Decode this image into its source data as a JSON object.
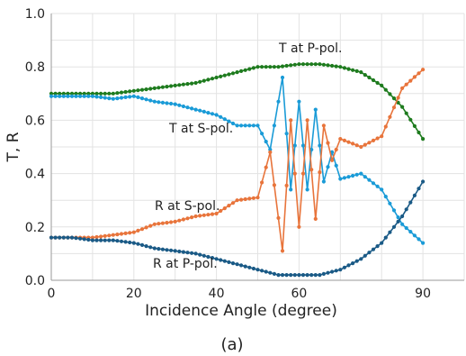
{
  "chart_data": {
    "type": "line",
    "xlabel": "Incidence Angle (degree)",
    "ylabel": "T, R",
    "caption": "(a)",
    "xlim": [
      0,
      100
    ],
    "ylim": [
      0,
      1.0
    ],
    "xticks": [
      "0",
      "20",
      "40",
      "60",
      "90"
    ],
    "yticks": [
      "0.0",
      "0.2",
      "0.4",
      "0.6",
      "0.8",
      "1.0"
    ],
    "grid": true,
    "series": [
      {
        "name": "T at P-pol.",
        "color": "#1e7b1e",
        "x": [
          0,
          5,
          10,
          15,
          20,
          25,
          30,
          35,
          40,
          45,
          50,
          55,
          60,
          65,
          70,
          75,
          80,
          85,
          90
        ],
        "y": [
          0.7,
          0.7,
          0.7,
          0.7,
          0.71,
          0.72,
          0.73,
          0.74,
          0.76,
          0.78,
          0.8,
          0.8,
          0.81,
          0.81,
          0.8,
          0.78,
          0.73,
          0.65,
          0.53
        ]
      },
      {
        "name": "T at S-pol.",
        "color": "#1a9bd7",
        "x": [
          0,
          5,
          10,
          15,
          20,
          25,
          30,
          35,
          40,
          45,
          50,
          53,
          56,
          58,
          60,
          62,
          64,
          66,
          68,
          70,
          75,
          80,
          85,
          90
        ],
        "y": [
          0.69,
          0.69,
          0.69,
          0.68,
          0.69,
          0.67,
          0.66,
          0.64,
          0.62,
          0.58,
          0.58,
          0.49,
          0.76,
          0.34,
          0.67,
          0.34,
          0.64,
          0.37,
          0.48,
          0.38,
          0.4,
          0.34,
          0.21,
          0.14
        ]
      },
      {
        "name": "R at S-pol.",
        "color": "#e8743b",
        "x": [
          0,
          5,
          10,
          15,
          20,
          25,
          30,
          35,
          40,
          45,
          50,
          53,
          56,
          58,
          60,
          62,
          64,
          66,
          68,
          70,
          75,
          80,
          85,
          90
        ],
        "y": [
          0.16,
          0.16,
          0.16,
          0.17,
          0.18,
          0.21,
          0.22,
          0.24,
          0.25,
          0.3,
          0.31,
          0.48,
          0.11,
          0.6,
          0.2,
          0.6,
          0.23,
          0.58,
          0.45,
          0.53,
          0.5,
          0.54,
          0.72,
          0.79
        ]
      },
      {
        "name": "R at P-pol.",
        "color": "#1a5a86",
        "x": [
          0,
          5,
          10,
          15,
          20,
          25,
          30,
          35,
          40,
          45,
          50,
          55,
          60,
          65,
          70,
          75,
          80,
          85,
          90
        ],
        "y": [
          0.16,
          0.16,
          0.15,
          0.15,
          0.14,
          0.12,
          0.11,
          0.1,
          0.08,
          0.06,
          0.04,
          0.02,
          0.02,
          0.02,
          0.04,
          0.08,
          0.14,
          0.24,
          0.37
        ]
      }
    ]
  }
}
